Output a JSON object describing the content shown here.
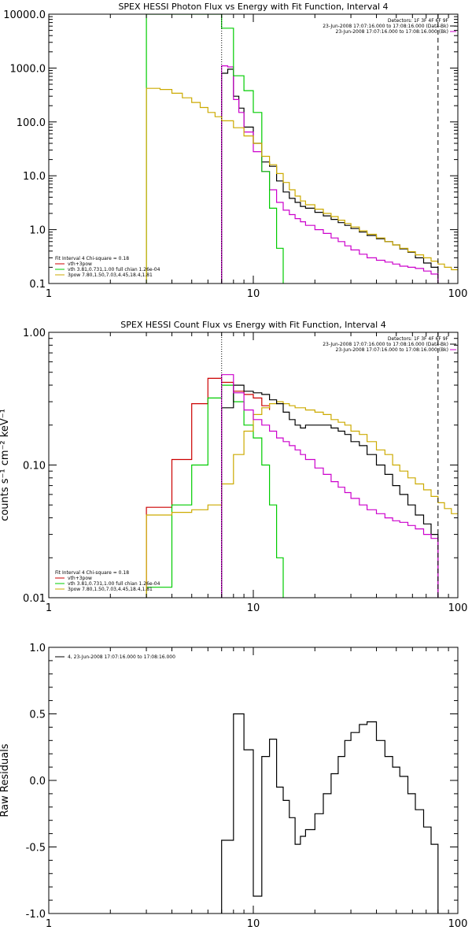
{
  "chart_data": [
    {
      "type": "line",
      "title": "SPEX HESSI Photon Flux vs Energy with Fit Function, Interval 4",
      "xlabel": "",
      "ylabel": "",
      "xscale": "log",
      "yscale": "log",
      "xlim": [
        1,
        100
      ],
      "ylim": [
        0.1,
        10000
      ],
      "xtick_labels": [
        "1",
        "10",
        "100"
      ],
      "ytick_labels": [
        "0.1",
        "1.0",
        "10.0",
        "100.0",
        "1000.0",
        "10000.0"
      ],
      "info_lines": [
        "Detectors: 1F 3F 4F 6F 9F",
        "23-Jun-2008 17:07:16.000 to 17:08:16.000 (Data-Bk)",
        "23-Jun-2008 17:07:16.000 to 17:08:16.000 (Bk)"
      ],
      "fit_text": "Fit Interval  4   Chi-square = 0.18",
      "legend": [
        {
          "label": "vth+3pow",
          "color": "#cc0000"
        },
        {
          "label": "vth 3.81,0.731,1.00  full chian 1.26e-04",
          "color": "#00cc00"
        },
        {
          "label": "3pow 7.80,1.50,7.03,4.45,18.4,1.81",
          "color": "#ccaa00"
        }
      ],
      "vlines": [
        {
          "x": 7.0,
          "style": "dotted"
        },
        {
          "x": 80,
          "style": "dashed"
        }
      ],
      "series": [
        {
          "id": "data",
          "color": "#000000",
          "edges": [
            7.0,
            7.5,
            8.0,
            8.5,
            9.0,
            10.0,
            11.0,
            12.0,
            13.0,
            14.0,
            15.0,
            16.0,
            17.0,
            18.0,
            20.0,
            22.0,
            24.0,
            26.0,
            28.0,
            30.0,
            33.0,
            36.0,
            40.0,
            44.0,
            48.0,
            52.0,
            57.0,
            62.0,
            68.0,
            74.0,
            80.0
          ],
          "values": [
            800,
            950,
            300,
            180,
            80,
            40,
            18,
            15,
            8,
            5,
            3.8,
            3.2,
            2.7,
            2.5,
            2.1,
            1.8,
            1.55,
            1.35,
            1.2,
            1.05,
            0.9,
            0.78,
            0.68,
            0.6,
            0.52,
            0.44,
            0.38,
            0.3,
            0.24,
            0.2
          ]
        },
        {
          "id": "background",
          "color": "#cc00cc",
          "edges": [
            7.0,
            7.5,
            8.0,
            8.5,
            9.0,
            10.0,
            11.0,
            12.0,
            13.0,
            14.0,
            15.0,
            16.0,
            17.0,
            18.0,
            20.0,
            22.0,
            24.0,
            26.0,
            28.0,
            30.0,
            33.0,
            36.0,
            40.0,
            44.0,
            48.0,
            52.0,
            57.0,
            62.0,
            68.0,
            74.0,
            80.0
          ],
          "values": [
            1100,
            1050,
            260,
            150,
            65,
            28,
            12,
            5.5,
            3.2,
            2.3,
            1.9,
            1.6,
            1.4,
            1.2,
            1.0,
            0.85,
            0.7,
            0.6,
            0.5,
            0.42,
            0.35,
            0.3,
            0.27,
            0.25,
            0.23,
            0.21,
            0.2,
            0.19,
            0.17,
            0.15
          ]
        },
        {
          "id": "vth",
          "color": "#00cc00",
          "edges": [
            3.0,
            7.0,
            8.0,
            9.0,
            10.0,
            11.0,
            12.0,
            13.0,
            14.0
          ],
          "values": [
            10000,
            5500,
            720,
            380,
            150,
            12,
            2.5,
            0.45,
            0.1
          ]
        },
        {
          "id": "3pow",
          "color": "#ccaa00",
          "edges": [
            3.0,
            3.5,
            4.0,
            4.5,
            5.0,
            5.5,
            6.0,
            6.5,
            7.0,
            8.0,
            9.0,
            10.0,
            11.0,
            12.0,
            13.0,
            14.0,
            15.0,
            16.0,
            17.0,
            18.0,
            20.0,
            22.0,
            24.0,
            26.0,
            28.0,
            30.0,
            33.0,
            36.0,
            40.0,
            44.0,
            48.0,
            52.0,
            57.0,
            62.0,
            68.0,
            74.0,
            80.0,
            86.0,
            93.0,
            100.0
          ],
          "values": [
            420,
            400,
            340,
            280,
            230,
            185,
            150,
            125,
            105,
            78,
            55,
            40,
            23,
            16,
            11,
            7.5,
            5.5,
            4.2,
            3.4,
            2.9,
            2.4,
            2.0,
            1.75,
            1.5,
            1.3,
            1.12,
            0.95,
            0.82,
            0.7,
            0.6,
            0.52,
            0.45,
            0.39,
            0.34,
            0.3,
            0.26,
            0.23,
            0.2,
            0.18
          ]
        }
      ]
    },
    {
      "type": "line",
      "title": "SPEX HESSI Count Flux vs Energy with Fit Function, Interval 4",
      "xlabel": "",
      "ylabel": "counts s⁻¹ cm⁻² keV⁻¹",
      "xscale": "log",
      "yscale": "log",
      "xlim": [
        1,
        100
      ],
      "ylim": [
        0.01,
        1.0
      ],
      "xtick_labels": [
        "1",
        "10",
        "100"
      ],
      "ytick_labels": [
        "0.01",
        "0.10",
        "1.00"
      ],
      "info_lines": [
        "Detectors: 1F 3F 4F 6F 9F",
        "23-Jun-2008 17:07:16.000 to 17:08:16.000 (Data-Bk)",
        "23-Jun-2008 17:07:16.000 to 17:08:16.000 (Bk)"
      ],
      "fit_text": "Fit Interval  4   Chi-square = 0.18",
      "legend": [
        {
          "label": "vth+3pow",
          "color": "#cc0000"
        },
        {
          "label": "vth 3.81,0.731,1.00  full chian 1.26e-04",
          "color": "#00cc00"
        },
        {
          "label": "3pow 7.80,1.50,7.03,4.45,18.4,1.81",
          "color": "#ccaa00"
        }
      ],
      "vlines": [
        {
          "x": 7.0,
          "style": "dotted"
        },
        {
          "x": 80,
          "style": "dashed"
        }
      ],
      "series": [
        {
          "id": "vth+3pow",
          "color": "#cc0000",
          "edges": [
            3.0,
            4.0,
            5.0,
            6.0,
            7.0,
            8.0,
            9.0,
            10.0,
            11.0,
            12.0
          ],
          "values": [
            0.048,
            0.11,
            0.29,
            0.45,
            0.42,
            0.36,
            0.34,
            0.32,
            0.28,
            0.26
          ]
        },
        {
          "id": "vth",
          "color": "#00cc00",
          "edges": [
            3.0,
            4.0,
            5.0,
            6.0,
            7.0,
            8.0,
            9.0,
            10.0,
            11.0,
            12.0,
            13.0,
            14.0
          ],
          "values": [
            0.012,
            0.05,
            0.1,
            0.32,
            0.4,
            0.3,
            0.2,
            0.16,
            0.1,
            0.05,
            0.02,
            0.01
          ]
        },
        {
          "id": "3pow",
          "color": "#ccaa00",
          "edges": [
            3.0,
            4.0,
            5.0,
            6.0,
            7.0,
            8.0,
            9.0,
            10.0,
            11.0,
            12.0,
            13.0,
            14.0,
            15.0,
            16.0,
            17.0,
            18.0,
            20.0,
            22.0,
            24.0,
            26.0,
            28.0,
            30.0,
            33.0,
            36.0,
            40.0,
            44.0,
            48.0,
            52.0,
            57.0,
            62.0,
            68.0,
            74.0,
            80.0,
            86.0,
            93.0,
            100.0
          ],
          "values": [
            0.042,
            0.044,
            0.046,
            0.05,
            0.072,
            0.12,
            0.18,
            0.24,
            0.27,
            0.29,
            0.3,
            0.29,
            0.28,
            0.27,
            0.27,
            0.26,
            0.25,
            0.24,
            0.22,
            0.21,
            0.2,
            0.18,
            0.17,
            0.15,
            0.13,
            0.12,
            0.1,
            0.09,
            0.08,
            0.072,
            0.065,
            0.058,
            0.052,
            0.047,
            0.043
          ]
        },
        {
          "id": "data",
          "color": "#000000",
          "edges": [
            7.0,
            8.0,
            9.0,
            10.0,
            11.0,
            12.0,
            13.0,
            14.0,
            15.0,
            16.0,
            17.0,
            18.0,
            20.0,
            22.0,
            24.0,
            26.0,
            28.0,
            30.0,
            33.0,
            36.0,
            40.0,
            44.0,
            48.0,
            52.0,
            57.0,
            62.0,
            68.0,
            74.0,
            80.0
          ],
          "values": [
            0.27,
            0.4,
            0.36,
            0.35,
            0.34,
            0.31,
            0.29,
            0.25,
            0.22,
            0.2,
            0.19,
            0.2,
            0.2,
            0.2,
            0.19,
            0.18,
            0.17,
            0.15,
            0.14,
            0.12,
            0.1,
            0.085,
            0.07,
            0.06,
            0.05,
            0.042,
            0.036,
            0.03
          ]
        },
        {
          "id": "background",
          "color": "#cc00cc",
          "edges": [
            7.0,
            8.0,
            9.0,
            10.0,
            11.0,
            12.0,
            13.0,
            14.0,
            15.0,
            16.0,
            17.0,
            18.0,
            20.0,
            22.0,
            24.0,
            26.0,
            28.0,
            30.0,
            33.0,
            36.0,
            40.0,
            44.0,
            48.0,
            52.0,
            57.0,
            62.0,
            68.0,
            74.0,
            80.0
          ],
          "values": [
            0.48,
            0.35,
            0.26,
            0.22,
            0.2,
            0.18,
            0.16,
            0.15,
            0.14,
            0.13,
            0.12,
            0.11,
            0.095,
            0.085,
            0.075,
            0.068,
            0.062,
            0.056,
            0.05,
            0.046,
            0.043,
            0.04,
            0.038,
            0.037,
            0.035,
            0.033,
            0.03,
            0.028
          ]
        }
      ]
    },
    {
      "type": "line",
      "title": "",
      "xlabel": "",
      "ylabel": "Raw Residuals",
      "xscale": "log",
      "yscale": "linear",
      "xlim": [
        1,
        100
      ],
      "ylim": [
        -1.0,
        1.0
      ],
      "xtick_labels": [
        "1",
        "10",
        "100"
      ],
      "ytick_labels": [
        "-1.0",
        "-0.5",
        "0.0",
        "0.5",
        "1.0"
      ],
      "legend": [
        {
          "label": "4, 23-Jun-2008 17:07:16.000 to 17:08:16.000",
          "color": "#000000"
        }
      ],
      "series": [
        {
          "id": "residuals",
          "color": "#000000",
          "edges": [
            7.0,
            8.0,
            9.0,
            10.0,
            11.0,
            12.0,
            13.0,
            14.0,
            15.0,
            16.0,
            17.0,
            18.0,
            20.0,
            22.0,
            24.0,
            26.0,
            28.0,
            30.0,
            33.0,
            36.0,
            40.0,
            44.0,
            48.0,
            52.0,
            57.0,
            62.0,
            68.0,
            74.0,
            80.0
          ],
          "values": [
            -0.45,
            0.5,
            0.23,
            -0.87,
            0.18,
            0.31,
            -0.05,
            -0.15,
            -0.28,
            -0.48,
            -0.42,
            -0.37,
            -0.25,
            -0.1,
            0.05,
            0.18,
            0.3,
            0.36,
            0.42,
            0.44,
            0.3,
            0.18,
            0.1,
            0.03,
            -0.1,
            -0.22,
            -0.35,
            -0.48,
            -1.0
          ]
        }
      ]
    }
  ]
}
